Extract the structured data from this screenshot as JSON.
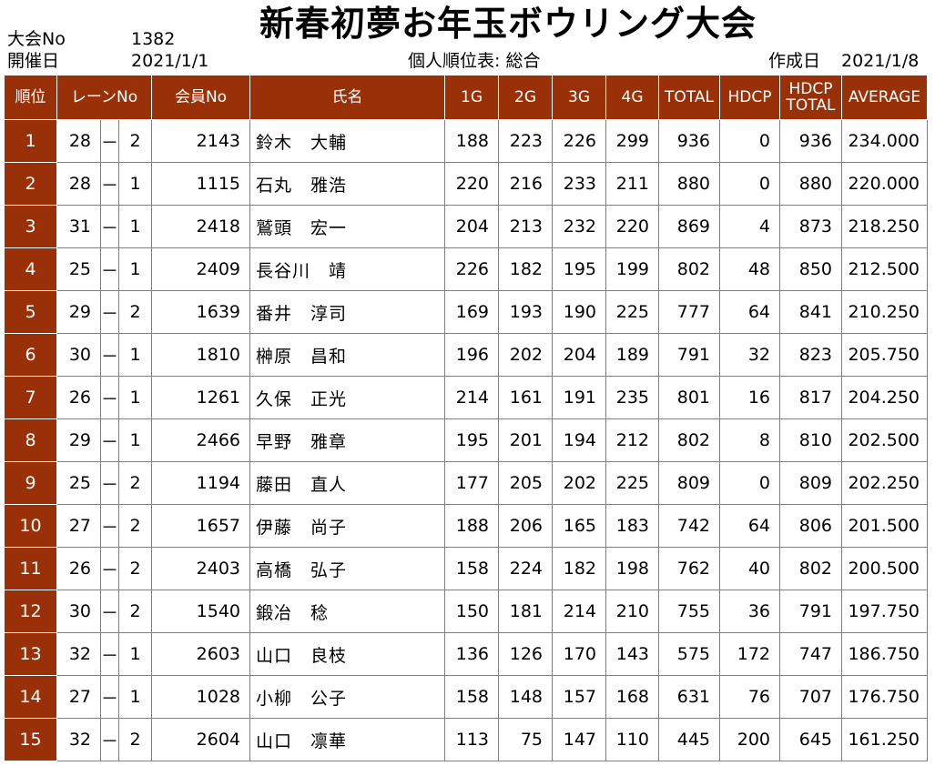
{
  "header": {
    "taikai_label": "大会No",
    "taikai_value": "1382",
    "date_label": "開催日",
    "date_value": "2021/1/1",
    "title": "新春初夢お年玉ボウリング大会",
    "subtitle": "個人順位表: 総合",
    "created_label": "作成日",
    "created_value": "2021/1/8"
  },
  "columns": {
    "rank": "順位",
    "lane": "レーンNo",
    "member": "会員No",
    "name": "氏名",
    "g1": "1G",
    "g2": "2G",
    "g3": "3G",
    "g4": "4G",
    "total": "TOTAL",
    "hdcp": "HDCP",
    "hdcp_total_1": "HDCP",
    "hdcp_total_2": "TOTAL",
    "average": "AVERAGE"
  },
  "rows": [
    {
      "rank": "1",
      "lane": "28",
      "sep": "－",
      "box": "2",
      "member": "2143",
      "name": "鈴木　大輔",
      "g1": "188",
      "g2": "223",
      "g3": "226",
      "g4": "299",
      "total": "936",
      "hdcp": "0",
      "hdcp_total": "936",
      "average": "234.000"
    },
    {
      "rank": "2",
      "lane": "28",
      "sep": "－",
      "box": "1",
      "member": "1115",
      "name": "石丸　雅浩",
      "g1": "220",
      "g2": "216",
      "g3": "233",
      "g4": "211",
      "total": "880",
      "hdcp": "0",
      "hdcp_total": "880",
      "average": "220.000"
    },
    {
      "rank": "3",
      "lane": "31",
      "sep": "－",
      "box": "1",
      "member": "2418",
      "name": "鷲頭　宏一",
      "g1": "204",
      "g2": "213",
      "g3": "232",
      "g4": "220",
      "total": "869",
      "hdcp": "4",
      "hdcp_total": "873",
      "average": "218.250"
    },
    {
      "rank": "4",
      "lane": "25",
      "sep": "－",
      "box": "1",
      "member": "2409",
      "name": "長谷川　靖",
      "g1": "226",
      "g2": "182",
      "g3": "195",
      "g4": "199",
      "total": "802",
      "hdcp": "48",
      "hdcp_total": "850",
      "average": "212.500"
    },
    {
      "rank": "5",
      "lane": "29",
      "sep": "－",
      "box": "2",
      "member": "1639",
      "name": "番井　淳司",
      "g1": "169",
      "g2": "193",
      "g3": "190",
      "g4": "225",
      "total": "777",
      "hdcp": "64",
      "hdcp_total": "841",
      "average": "210.250"
    },
    {
      "rank": "6",
      "lane": "30",
      "sep": "－",
      "box": "1",
      "member": "1810",
      "name": "榊原　昌和",
      "g1": "196",
      "g2": "202",
      "g3": "204",
      "g4": "189",
      "total": "791",
      "hdcp": "32",
      "hdcp_total": "823",
      "average": "205.750"
    },
    {
      "rank": "7",
      "lane": "26",
      "sep": "－",
      "box": "1",
      "member": "1261",
      "name": "久保　正光",
      "g1": "214",
      "g2": "161",
      "g3": "191",
      "g4": "235",
      "total": "801",
      "hdcp": "16",
      "hdcp_total": "817",
      "average": "204.250"
    },
    {
      "rank": "8",
      "lane": "29",
      "sep": "－",
      "box": "1",
      "member": "2466",
      "name": "早野　雅章",
      "g1": "195",
      "g2": "201",
      "g3": "194",
      "g4": "212",
      "total": "802",
      "hdcp": "8",
      "hdcp_total": "810",
      "average": "202.500"
    },
    {
      "rank": "9",
      "lane": "25",
      "sep": "－",
      "box": "2",
      "member": "1194",
      "name": "藤田　直人",
      "g1": "177",
      "g2": "205",
      "g3": "202",
      "g4": "225",
      "total": "809",
      "hdcp": "0",
      "hdcp_total": "809",
      "average": "202.250"
    },
    {
      "rank": "10",
      "lane": "27",
      "sep": "－",
      "box": "2",
      "member": "1657",
      "name": "伊藤　尚子",
      "g1": "188",
      "g2": "206",
      "g3": "165",
      "g4": "183",
      "total": "742",
      "hdcp": "64",
      "hdcp_total": "806",
      "average": "201.500"
    },
    {
      "rank": "11",
      "lane": "26",
      "sep": "－",
      "box": "2",
      "member": "2403",
      "name": "高橋　弘子",
      "g1": "158",
      "g2": "224",
      "g3": "182",
      "g4": "198",
      "total": "762",
      "hdcp": "40",
      "hdcp_total": "802",
      "average": "200.500"
    },
    {
      "rank": "12",
      "lane": "30",
      "sep": "－",
      "box": "2",
      "member": "1540",
      "name": "鍛冶　稔",
      "g1": "150",
      "g2": "181",
      "g3": "214",
      "g4": "210",
      "total": "755",
      "hdcp": "36",
      "hdcp_total": "791",
      "average": "197.750"
    },
    {
      "rank": "13",
      "lane": "32",
      "sep": "－",
      "box": "1",
      "member": "2603",
      "name": "山口　良枝",
      "g1": "136",
      "g2": "126",
      "g3": "170",
      "g4": "143",
      "total": "575",
      "hdcp": "172",
      "hdcp_total": "747",
      "average": "186.750"
    },
    {
      "rank": "14",
      "lane": "27",
      "sep": "－",
      "box": "1",
      "member": "1028",
      "name": "小柳　公子",
      "g1": "158",
      "g2": "148",
      "g3": "157",
      "g4": "168",
      "total": "631",
      "hdcp": "76",
      "hdcp_total": "707",
      "average": "176.750"
    },
    {
      "rank": "15",
      "lane": "32",
      "sep": "－",
      "box": "2",
      "member": "2604",
      "name": "山口　凛華",
      "g1": "113",
      "g2": "75",
      "g3": "147",
      "g4": "110",
      "total": "445",
      "hdcp": "200",
      "hdcp_total": "645",
      "average": "161.250"
    }
  ],
  "colors": {
    "header_bg": "#9a3007",
    "header_text": "#ffffff",
    "grid": "#808080"
  }
}
